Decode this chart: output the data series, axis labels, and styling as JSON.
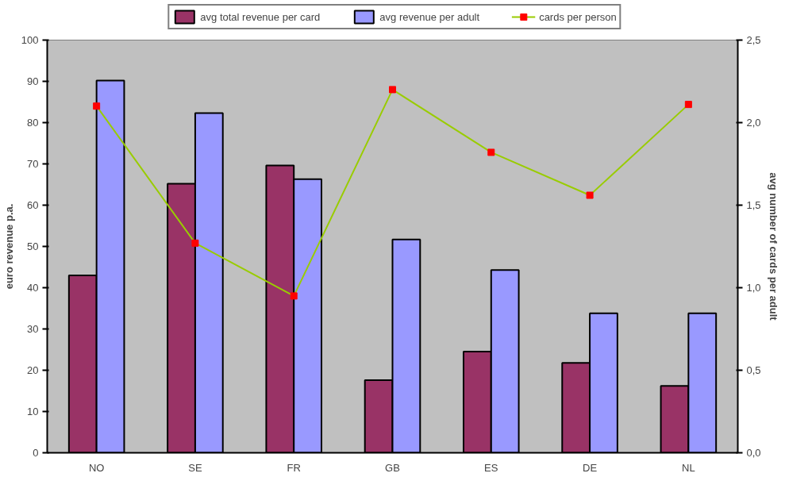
{
  "chart_data": {
    "type": "bar",
    "ylabel": "euro revenue p.a.",
    "y2label": "avg number of cards per adult",
    "categories": [
      "NO",
      "SE",
      "FR",
      "GB",
      "ES",
      "DE",
      "NL"
    ],
    "series": [
      {
        "name": "avg total revenue per card",
        "color": "#993366",
        "values": [
          43.0,
          65.2,
          69.6,
          17.6,
          24.5,
          21.8,
          16.2
        ]
      },
      {
        "name": "avg revenue per adult",
        "color": "#9999ff",
        "values": [
          90.2,
          82.3,
          66.3,
          51.7,
          44.3,
          33.8,
          33.8
        ]
      },
      {
        "name": "cards per person",
        "type": "line",
        "axis": "y2",
        "color": "#99cc00",
        "marker": "square",
        "values": [
          2.1,
          1.27,
          0.95,
          2.2,
          1.82,
          1.56,
          2.11
        ]
      }
    ],
    "ylim": [
      0,
      100
    ],
    "yticks": [
      0,
      10,
      20,
      30,
      40,
      50,
      60,
      70,
      80,
      90,
      100
    ],
    "y2lim": [
      0,
      2.5
    ],
    "y2ticks": [
      {
        "value": 0,
        "label": "0,0"
      },
      {
        "value": 0.5,
        "label": "0,5"
      },
      {
        "value": 1.0,
        "label": "1,0"
      },
      {
        "value": 1.5,
        "label": "1,5"
      },
      {
        "value": 2.0,
        "label": "2,0"
      },
      {
        "value": 2.5,
        "label": "2,5"
      }
    ],
    "grid": false,
    "legend": "top"
  }
}
